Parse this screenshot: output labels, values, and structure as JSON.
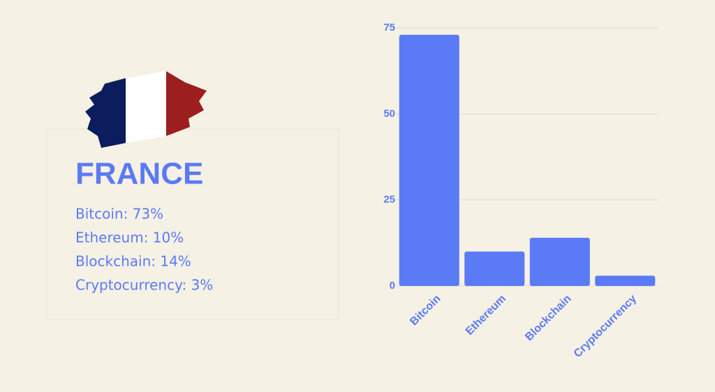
{
  "panel": {
    "title": "FRANCE",
    "items": [
      "Bitcoin: 73%",
      "Ethereum: 10%",
      "Blockchain: 14%",
      "Cryptocurrency: 3%"
    ]
  },
  "chart_data": {
    "type": "bar",
    "categories": [
      "Bitcoin",
      "Ethereum",
      "Blockchain",
      "Cryptocurrency"
    ],
    "values": [
      73,
      10,
      14,
      3
    ],
    "color": "#5b7af5",
    "ylim": [
      0,
      75
    ],
    "yticks": [
      0,
      25,
      50,
      75
    ],
    "grid": true
  }
}
